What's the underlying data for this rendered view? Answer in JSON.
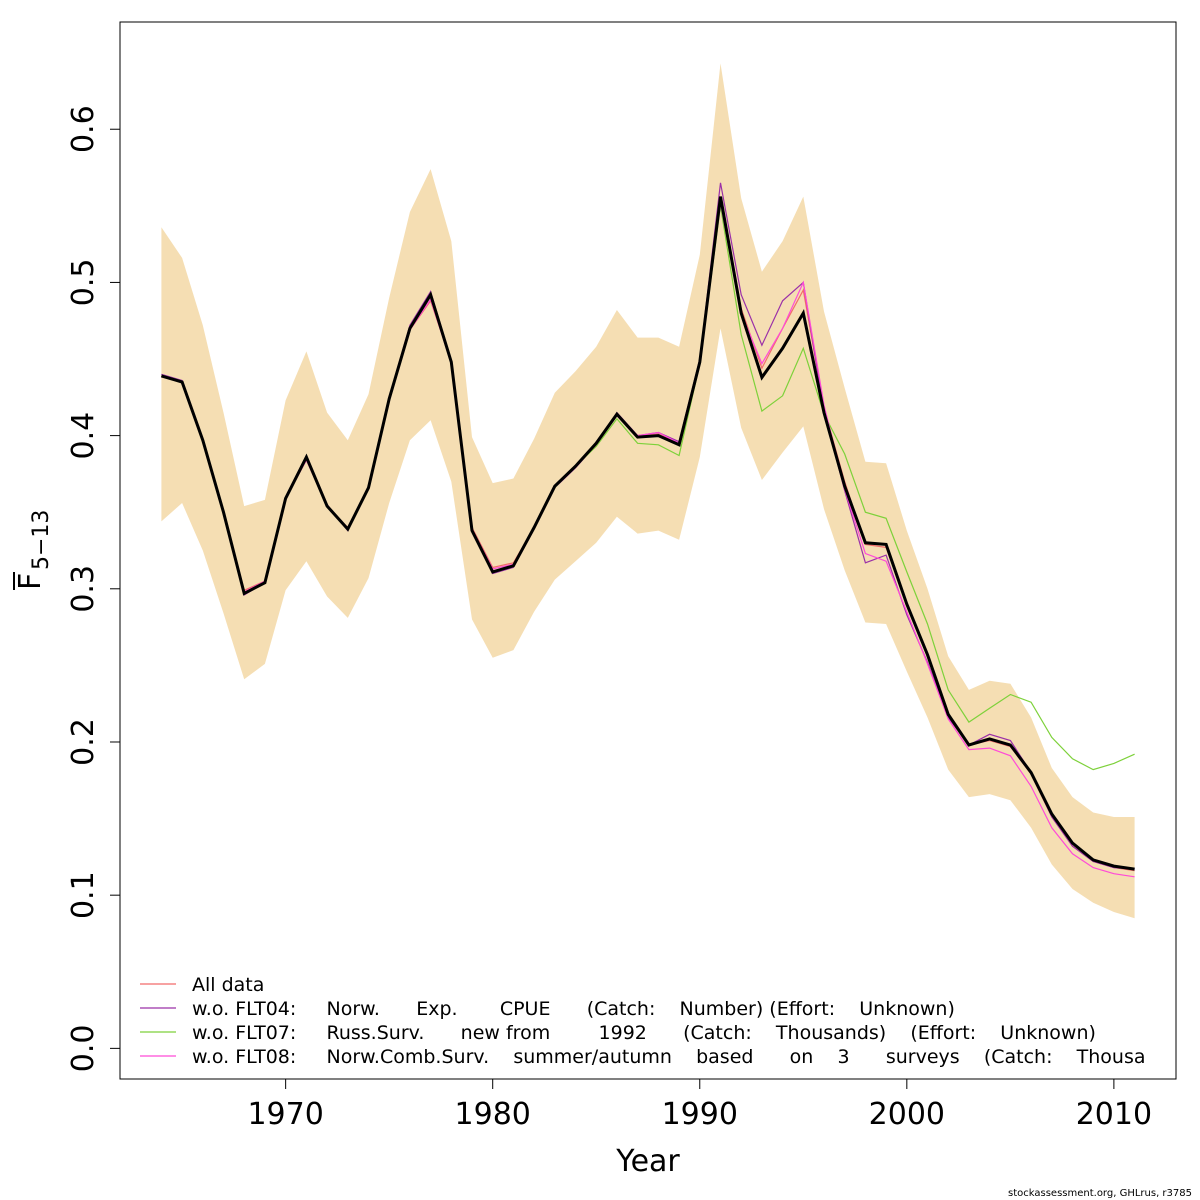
{
  "chart_data": {
    "type": "line",
    "xlabel": "Year",
    "ylabel_main": "F",
    "ylabel_sub": "5−13",
    "xlim": [
      1962,
      2013
    ],
    "ylim": [
      -0.02,
      0.67
    ],
    "x_ticks": [
      1970,
      1980,
      1990,
      2000,
      2010
    ],
    "y_ticks": [
      0.0,
      0.1,
      0.2,
      0.3,
      0.4,
      0.5,
      0.6
    ],
    "y_tick_labels": [
      "0.0",
      "0.1",
      "0.2",
      "0.3",
      "0.4",
      "0.5",
      "0.6"
    ],
    "x": [
      1964,
      1965,
      1966,
      1967,
      1968,
      1969,
      1970,
      1971,
      1972,
      1973,
      1974,
      1975,
      1976,
      1977,
      1978,
      1979,
      1980,
      1981,
      1982,
      1983,
      1984,
      1985,
      1986,
      1987,
      1988,
      1989,
      1990,
      1991,
      1992,
      1993,
      1994,
      1995,
      1996,
      1997,
      1998,
      1999,
      2000,
      2001,
      2002,
      2003,
      2004,
      2005,
      2006,
      2007,
      2008,
      2009,
      2010,
      2011
    ],
    "band": {
      "color": "#f5deb3",
      "upper": [
        0.536,
        0.516,
        0.472,
        0.415,
        0.354,
        0.358,
        0.423,
        0.455,
        0.415,
        0.397,
        0.427,
        0.49,
        0.546,
        0.574,
        0.527,
        0.399,
        0.369,
        0.372,
        0.398,
        0.428,
        0.442,
        0.458,
        0.482,
        0.464,
        0.464,
        0.458,
        0.518,
        0.643,
        0.555,
        0.507,
        0.527,
        0.556,
        0.481,
        0.431,
        0.383,
        0.382,
        0.338,
        0.3,
        0.256,
        0.234,
        0.24,
        0.238,
        0.216,
        0.183,
        0.164,
        0.154,
        0.151,
        0.151
      ],
      "lower": [
        0.344,
        0.356,
        0.325,
        0.284,
        0.241,
        0.251,
        0.299,
        0.318,
        0.295,
        0.281,
        0.307,
        0.356,
        0.397,
        0.41,
        0.37,
        0.28,
        0.255,
        0.26,
        0.285,
        0.306,
        0.318,
        0.33,
        0.347,
        0.336,
        0.338,
        0.332,
        0.386,
        0.47,
        0.405,
        0.371,
        0.389,
        0.406,
        0.352,
        0.312,
        0.278,
        0.277,
        0.246,
        0.216,
        0.182,
        0.164,
        0.166,
        0.162,
        0.144,
        0.12,
        0.104,
        0.095,
        0.089,
        0.085
      ]
    },
    "main_line": {
      "color": "#000000",
      "values": [
        0.439,
        0.435,
        0.397,
        0.35,
        0.297,
        0.304,
        0.359,
        0.386,
        0.354,
        0.339,
        0.366,
        0.424,
        0.47,
        0.492,
        0.448,
        0.338,
        0.311,
        0.315,
        0.34,
        0.367,
        0.38,
        0.395,
        0.414,
        0.399,
        0.4,
        0.394,
        0.448,
        0.556,
        0.48,
        0.438,
        0.457,
        0.48,
        0.415,
        0.367,
        0.33,
        0.329,
        0.29,
        0.257,
        0.218,
        0.198,
        0.202,
        0.198,
        0.18,
        0.153,
        0.134,
        0.123,
        0.119,
        0.117
      ]
    },
    "series": [
      {
        "name": "All data",
        "color": "#f26b6b",
        "values": [
          0.439,
          0.435,
          0.397,
          0.35,
          0.299,
          0.305,
          0.359,
          0.384,
          0.354,
          0.34,
          0.366,
          0.424,
          0.469,
          0.488,
          0.448,
          0.34,
          0.314,
          0.317,
          0.34,
          0.367,
          0.38,
          0.395,
          0.414,
          0.4,
          0.401,
          0.395,
          0.448,
          0.553,
          0.483,
          0.444,
          0.47,
          0.495,
          0.418,
          0.37,
          0.329,
          0.327,
          0.29,
          0.257,
          0.218,
          0.198,
          0.201,
          0.197,
          0.179,
          0.151,
          0.132,
          0.122,
          0.118,
          0.116
        ]
      },
      {
        "name": "w.o. FLT04:     Norw.      Exp.       CPUE      (Catch:    Number) (Effort:    Unknown)",
        "color": "#9b30a8",
        "values": [
          0.44,
          0.436,
          0.398,
          0.349,
          0.296,
          0.304,
          0.36,
          0.387,
          0.355,
          0.338,
          0.367,
          0.425,
          0.472,
          0.494,
          0.449,
          0.337,
          0.31,
          0.314,
          0.339,
          0.366,
          0.379,
          0.394,
          0.415,
          0.4,
          0.402,
          0.396,
          0.45,
          0.565,
          0.492,
          0.459,
          0.488,
          0.5,
          0.416,
          0.364,
          0.317,
          0.322,
          0.283,
          0.252,
          0.216,
          0.198,
          0.205,
          0.201,
          0.18,
          0.151,
          0.132,
          0.122,
          0.118,
          0.117
        ]
      },
      {
        "name": "w.o. FLT07:     Russ.Surv.      new from        1992      (Catch:    Thousands)    (Effort:    Unknown)",
        "color": "#7dd13a",
        "values": [
          0.439,
          0.435,
          0.397,
          0.349,
          0.297,
          0.305,
          0.359,
          0.384,
          0.354,
          0.339,
          0.366,
          0.424,
          0.47,
          0.491,
          0.447,
          0.337,
          0.311,
          0.315,
          0.34,
          0.366,
          0.38,
          0.393,
          0.411,
          0.395,
          0.394,
          0.387,
          0.447,
          0.55,
          0.466,
          0.416,
          0.426,
          0.457,
          0.414,
          0.388,
          0.35,
          0.346,
          0.311,
          0.277,
          0.234,
          0.213,
          0.222,
          0.231,
          0.226,
          0.203,
          0.189,
          0.182,
          0.186,
          0.192
        ]
      },
      {
        "name": "w.o. FLT08:     Norw.Comb.Surv.    summer/autumn    based      on    3      surveys    (Catch:    Thousa",
        "color": "#ff4ad8",
        "values": [
          0.439,
          0.435,
          0.397,
          0.35,
          0.298,
          0.305,
          0.359,
          0.384,
          0.354,
          0.339,
          0.366,
          0.424,
          0.469,
          0.489,
          0.447,
          0.339,
          0.313,
          0.316,
          0.34,
          0.367,
          0.38,
          0.394,
          0.413,
          0.4,
          0.402,
          0.395,
          0.448,
          0.552,
          0.48,
          0.447,
          0.47,
          0.5,
          0.42,
          0.365,
          0.323,
          0.318,
          0.285,
          0.251,
          0.215,
          0.195,
          0.196,
          0.191,
          0.171,
          0.144,
          0.127,
          0.118,
          0.114,
          0.112
        ]
      }
    ],
    "legend_position": "bottom-left",
    "grid": false
  },
  "credit": "stockassessment.org, GHLrus, r3785"
}
